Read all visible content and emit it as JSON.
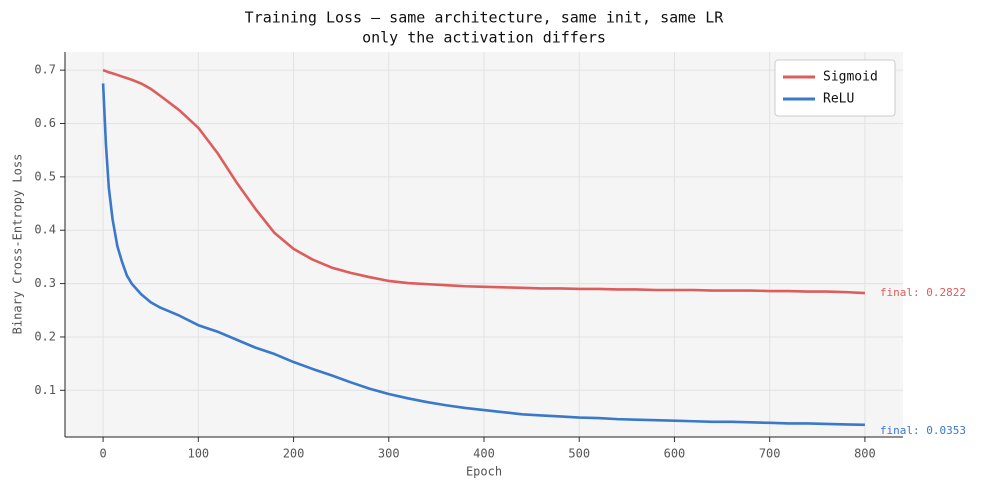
{
  "chart_data": {
    "type": "line",
    "title": "Training Loss — same architecture, same init, same LR",
    "subtitle": "only the activation differs",
    "x_label": "Epoch",
    "y_label": "Binary Cross-Entropy Loss",
    "x": [
      0,
      3,
      6,
      10,
      15,
      20,
      25,
      30,
      40,
      50,
      60,
      80,
      100,
      120,
      140,
      160,
      180,
      200,
      220,
      240,
      260,
      280,
      300,
      320,
      340,
      360,
      380,
      400,
      420,
      440,
      460,
      480,
      500,
      520,
      540,
      560,
      580,
      600,
      620,
      640,
      660,
      680,
      700,
      720,
      740,
      760,
      780,
      800
    ],
    "series": [
      {
        "name": "Sigmoid",
        "color": "#dd5c5c",
        "values": [
          0.7,
          0.698,
          0.696,
          0.694,
          0.691,
          0.688,
          0.685,
          0.682,
          0.675,
          0.665,
          0.652,
          0.625,
          0.592,
          0.545,
          0.49,
          0.44,
          0.395,
          0.365,
          0.345,
          0.33,
          0.32,
          0.312,
          0.305,
          0.301,
          0.299,
          0.297,
          0.295,
          0.294,
          0.293,
          0.292,
          0.291,
          0.291,
          0.29,
          0.29,
          0.289,
          0.289,
          0.288,
          0.288,
          0.288,
          0.287,
          0.287,
          0.287,
          0.286,
          0.286,
          0.285,
          0.285,
          0.284,
          0.2822
        ]
      },
      {
        "name": "ReLU",
        "color": "#3a78c9",
        "values": [
          0.675,
          0.56,
          0.48,
          0.42,
          0.37,
          0.34,
          0.315,
          0.3,
          0.28,
          0.265,
          0.255,
          0.24,
          0.222,
          0.21,
          0.195,
          0.18,
          0.168,
          0.153,
          0.14,
          0.128,
          0.115,
          0.103,
          0.093,
          0.085,
          0.078,
          0.072,
          0.067,
          0.063,
          0.059,
          0.055,
          0.053,
          0.051,
          0.049,
          0.048,
          0.046,
          0.045,
          0.044,
          0.043,
          0.042,
          0.041,
          0.041,
          0.04,
          0.039,
          0.038,
          0.038,
          0.037,
          0.036,
          0.0353
        ]
      }
    ],
    "annotations": [
      "final: 0.2822",
      "final: 0.0353"
    ],
    "xlim": [
      -40,
      840
    ],
    "ylim": [
      0.0125,
      0.734
    ],
    "xticks": [
      0,
      100,
      200,
      300,
      400,
      500,
      600,
      700,
      800
    ],
    "yticks": [
      0.1,
      0.2,
      0.3,
      0.4,
      0.5,
      0.6,
      0.7
    ],
    "grid": true,
    "legend": "upper right"
  }
}
